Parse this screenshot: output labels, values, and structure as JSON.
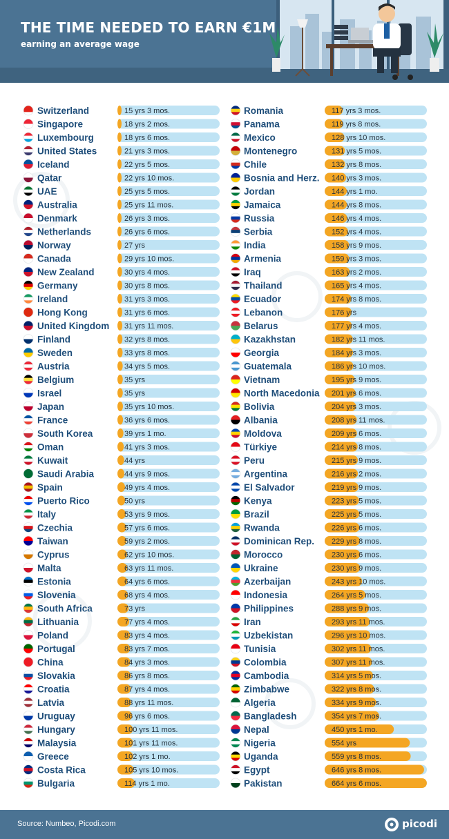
{
  "header": {
    "title": "THE TIME NEEDED TO EARN €1M",
    "subtitle": "earning an average wage"
  },
  "footer": {
    "source": "Source: Numbeo, Picodi.com",
    "logo": "picodi"
  },
  "colors": {
    "header_bg": "#4b7393",
    "country_text": "#1f4e7a",
    "bar_track": "#bfe3f4",
    "bar_fill": "#f4a623",
    "value_text": "#26323c"
  },
  "chart_data": {
    "type": "bar",
    "orientation": "horizontal",
    "title": "THE TIME NEEDED TO EARN €1M",
    "subtitle": "earning an average wage",
    "units": "years",
    "xlim": [
      0,
      665
    ],
    "grid": false,
    "legend": "none",
    "columns": [
      {
        "rows": [
          {
            "country": "Switzerland",
            "flag": "switzerland-flag",
            "label": "15 yrs 3 mos.",
            "years": 15.25
          },
          {
            "country": "Singapore",
            "flag": "singapore-flag",
            "label": "18 yrs 2 mos.",
            "years": 18.17
          },
          {
            "country": "Luxembourg",
            "flag": "luxembourg-flag",
            "label": "18 yrs 6 mos.",
            "years": 18.5
          },
          {
            "country": "United States",
            "flag": "united-states-flag",
            "label": "21 yrs 3 mos.",
            "years": 21.25
          },
          {
            "country": "Iceland",
            "flag": "iceland-flag",
            "label": "22 yrs 5 mos.",
            "years": 22.42
          },
          {
            "country": "Qatar",
            "flag": "qatar-flag",
            "label": "22 yrs 10 mos.",
            "years": 22.83
          },
          {
            "country": "UAE",
            "flag": "uae-flag",
            "label": "25 yrs 5 mos.",
            "years": 25.42
          },
          {
            "country": "Australia",
            "flag": "australia-flag",
            "label": "25 yrs 11 mos.",
            "years": 25.92
          },
          {
            "country": "Denmark",
            "flag": "denmark-flag",
            "label": "26 yrs 3 mos.",
            "years": 26.25
          },
          {
            "country": "Netherlands",
            "flag": "netherlands-flag",
            "label": "26 yrs 6 mos.",
            "years": 26.5
          },
          {
            "country": "Norway",
            "flag": "norway-flag",
            "label": "27 yrs",
            "years": 27
          },
          {
            "country": "Canada",
            "flag": "canada-flag",
            "label": "29 yrs 10 mos.",
            "years": 29.83
          },
          {
            "country": "New Zealand",
            "flag": "new-zealand-flag",
            "label": "30 yrs 4 mos.",
            "years": 30.33
          },
          {
            "country": "Germany",
            "flag": "germany-flag",
            "label": "30 yrs 8 mos.",
            "years": 30.67
          },
          {
            "country": "Ireland",
            "flag": "ireland-flag",
            "label": "31 yrs 3 mos.",
            "years": 31.25
          },
          {
            "country": "Hong Kong",
            "flag": "hong-kong-flag",
            "label": "31 yrs 6 mos.",
            "years": 31.5
          },
          {
            "country": "United Kingdom",
            "flag": "united-kingdom-flag",
            "label": "31 yrs 11 mos.",
            "years": 31.92
          },
          {
            "country": "Finland",
            "flag": "finland-flag",
            "label": "32 yrs 8 mos.",
            "years": 32.67
          },
          {
            "country": "Sweden",
            "flag": "sweden-flag",
            "label": "33 yrs 8 mos.",
            "years": 33.67
          },
          {
            "country": "Austria",
            "flag": "austria-flag",
            "label": "34 yrs 5 mos.",
            "years": 34.42
          },
          {
            "country": "Belgium",
            "flag": "belgium-flag",
            "label": "35 yrs",
            "years": 35
          },
          {
            "country": "Israel",
            "flag": "israel-flag",
            "label": "35 yrs",
            "years": 35
          },
          {
            "country": "Japan",
            "flag": "japan-flag",
            "label": "35 yrs 10 mos.",
            "years": 35.83
          },
          {
            "country": "France",
            "flag": "france-flag",
            "label": "36 yrs 6 mos.",
            "years": 36.5
          },
          {
            "country": "South Korea",
            "flag": "south-korea-flag",
            "label": "39 yrs 1 mo.",
            "years": 39.08
          },
          {
            "country": "Oman",
            "flag": "oman-flag",
            "label": "41 yrs 3 mos.",
            "years": 41.25
          },
          {
            "country": "Kuwait",
            "flag": "kuwait-flag",
            "label": "44 yrs",
            "years": 44
          },
          {
            "country": "Saudi Arabia",
            "flag": "saudi-arabia-flag",
            "label": "44 yrs 9 mos.",
            "years": 44.75
          },
          {
            "country": "Spain",
            "flag": "spain-flag",
            "label": "49 yrs 4 mos.",
            "years": 49.33
          },
          {
            "country": "Puerto Rico",
            "flag": "puerto-rico-flag",
            "label": "50 yrs",
            "years": 50
          },
          {
            "country": "Italy",
            "flag": "italy-flag",
            "label": "53 yrs 9 mos.",
            "years": 53.75
          },
          {
            "country": "Czechia",
            "flag": "czechia-flag",
            "label": "57 yrs 6 mos.",
            "years": 57.5
          },
          {
            "country": "Taiwan",
            "flag": "taiwan-flag",
            "label": "59 yrs 2 mos.",
            "years": 59.17
          },
          {
            "country": "Cyprus",
            "flag": "cyprus-flag",
            "label": "62 yrs 10 mos.",
            "years": 62.83
          },
          {
            "country": "Malta",
            "flag": "malta-flag",
            "label": "63 yrs 11 mos.",
            "years": 63.92
          },
          {
            "country": "Estonia",
            "flag": "estonia-flag",
            "label": "64 yrs 6 mos.",
            "years": 64.5
          },
          {
            "country": "Slovenia",
            "flag": "slovenia-flag",
            "label": "68 yrs 4 mos.",
            "years": 68.33
          },
          {
            "country": "South Africa",
            "flag": "south-africa-flag",
            "label": "73 yrs",
            "years": 73
          },
          {
            "country": "Lithuania",
            "flag": "lithuania-flag",
            "label": "77 yrs 4 mos.",
            "years": 77.33
          },
          {
            "country": "Poland",
            "flag": "poland-flag",
            "label": "83 yrs 4 mos.",
            "years": 83.33
          },
          {
            "country": "Portugal",
            "flag": "portugal-flag",
            "label": "83 yrs 7 mos.",
            "years": 83.58
          },
          {
            "country": "China",
            "flag": "china-flag",
            "label": "84 yrs 3 mos.",
            "years": 84.25
          },
          {
            "country": "Slovakia",
            "flag": "slovakia-flag",
            "label": "86 yrs 8 mos.",
            "years": 86.67
          },
          {
            "country": "Croatia",
            "flag": "croatia-flag",
            "label": "87 yrs 4 mos.",
            "years": 87.33
          },
          {
            "country": "Latvia",
            "flag": "latvia-flag",
            "label": "88 yrs 11 mos.",
            "years": 88.92
          },
          {
            "country": "Uruguay",
            "flag": "uruguay-flag",
            "label": "96 yrs 6 mos.",
            "years": 96.5
          },
          {
            "country": "Hungary",
            "flag": "hungary-flag",
            "label": "100 yrs 11 mos.",
            "years": 100.92
          },
          {
            "country": "Malaysia",
            "flag": "malaysia-flag",
            "label": "101 yrs 11 mos.",
            "years": 101.92
          },
          {
            "country": "Greece",
            "flag": "greece-flag",
            "label": "102 yrs 1 mo.",
            "years": 102.08
          },
          {
            "country": "Costa Rica",
            "flag": "costa-rica-flag",
            "label": "105 yrs 10 mos.",
            "years": 105.83
          },
          {
            "country": "Bulgaria",
            "flag": "bulgaria-flag",
            "label": "114 yrs 1 mo.",
            "years": 114.08
          }
        ]
      },
      {
        "rows": [
          {
            "country": "Romania",
            "flag": "romania-flag",
            "label": "117 yrs 3 mos.",
            "years": 117.25
          },
          {
            "country": "Panama",
            "flag": "panama-flag",
            "label": "119 yrs 8 mos.",
            "years": 119.67
          },
          {
            "country": "Mexico",
            "flag": "mexico-flag",
            "label": "128 yrs 10 mos.",
            "years": 128.83
          },
          {
            "country": "Montenegro",
            "flag": "montenegro-flag",
            "label": "131 yrs 5 mos.",
            "years": 131.42
          },
          {
            "country": "Chile",
            "flag": "chile-flag",
            "label": "132 yrs 8 mos.",
            "years": 132.67
          },
          {
            "country": "Bosnia and Herz.",
            "flag": "bosnia-flag",
            "label": "140 yrs 3 mos.",
            "years": 140.25
          },
          {
            "country": "Jordan",
            "flag": "jordan-flag",
            "label": "144 yrs 1 mo.",
            "years": 144.08
          },
          {
            "country": "Jamaica",
            "flag": "jamaica-flag",
            "label": "144 yrs 8 mos.",
            "years": 144.67
          },
          {
            "country": "Russia",
            "flag": "russia-flag",
            "label": "146 yrs 4 mos.",
            "years": 146.33
          },
          {
            "country": "Serbia",
            "flag": "serbia-flag",
            "label": "152 yrs 4 mos.",
            "years": 152.33
          },
          {
            "country": "India",
            "flag": "india-flag",
            "label": "158 yrs 9 mos.",
            "years": 158.75
          },
          {
            "country": "Armenia",
            "flag": "armenia-flag",
            "label": "159 yrs 3 mos.",
            "years": 159.25
          },
          {
            "country": "Iraq",
            "flag": "iraq-flag",
            "label": "163 yrs 2 mos.",
            "years": 163.17
          },
          {
            "country": "Thailand",
            "flag": "thailand-flag",
            "label": "165 yrs 4 mos.",
            "years": 165.33
          },
          {
            "country": "Ecuador",
            "flag": "ecuador-flag",
            "label": "174 yrs 8 mos.",
            "years": 174.67
          },
          {
            "country": "Lebanon",
            "flag": "lebanon-flag",
            "label": "176 yrs",
            "years": 176
          },
          {
            "country": "Belarus",
            "flag": "belarus-flag",
            "label": "177 yrs 4 mos.",
            "years": 177.33
          },
          {
            "country": "Kazakhstan",
            "flag": "kazakhstan-flag",
            "label": "182 yrs 11 mos.",
            "years": 182.92
          },
          {
            "country": "Georgia",
            "flag": "georgia-flag",
            "label": "184 yrs 3 mos.",
            "years": 184.25
          },
          {
            "country": "Guatemala",
            "flag": "guatemala-flag",
            "label": "186 yrs 10 mos.",
            "years": 186.83
          },
          {
            "country": "Vietnam",
            "flag": "vietnam-flag",
            "label": "195 yrs 9 mos.",
            "years": 195.75
          },
          {
            "country": "North Macedonia",
            "flag": "north-macedonia-flag",
            "label": "201 yrs 6 mos.",
            "years": 201.5
          },
          {
            "country": "Bolivia",
            "flag": "bolivia-flag",
            "label": "204 yrs 3 mos.",
            "years": 204.25
          },
          {
            "country": "Albania",
            "flag": "albania-flag",
            "label": "208 yrs 11 mos.",
            "years": 208.92
          },
          {
            "country": "Moldova",
            "flag": "moldova-flag",
            "label": "209 yrs 6 mos.",
            "years": 209.5
          },
          {
            "country": "Türkiye",
            "flag": "turkiye-flag",
            "label": "214 yrs 8 mos.",
            "years": 214.67
          },
          {
            "country": "Peru",
            "flag": "peru-flag",
            "label": "215 yrs 9 mos.",
            "years": 215.75
          },
          {
            "country": "Argentina",
            "flag": "argentina-flag",
            "label": "216 yrs 2 mos.",
            "years": 216.17
          },
          {
            "country": "El Salvador",
            "flag": "el-salvador-flag",
            "label": "219 yrs 9 mos.",
            "years": 219.75
          },
          {
            "country": "Kenya",
            "flag": "kenya-flag",
            "label": "223 yrs 5 mos.",
            "years": 223.42
          },
          {
            "country": "Brazil",
            "flag": "brazil-flag",
            "label": "225 yrs 5 mos.",
            "years": 225.42
          },
          {
            "country": "Rwanda",
            "flag": "rwanda-flag",
            "label": "226 yrs 6 mos.",
            "years": 226.5
          },
          {
            "country": "Dominican Rep.",
            "flag": "dominican-republic-flag",
            "label": "229 yrs 8 mos.",
            "years": 229.67
          },
          {
            "country": "Morocco",
            "flag": "morocco-flag",
            "label": "230 yrs 6 mos.",
            "years": 230.5
          },
          {
            "country": "Ukraine",
            "flag": "ukraine-flag",
            "label": "230 yrs 9 mos.",
            "years": 230.75
          },
          {
            "country": "Azerbaijan",
            "flag": "azerbaijan-flag",
            "label": "243 yrs 10 mos.",
            "years": 243.83
          },
          {
            "country": "Indonesia",
            "flag": "indonesia-flag",
            "label": "264 yrs 5 mos.",
            "years": 264.42
          },
          {
            "country": "Philippines",
            "flag": "philippines-flag",
            "label": "288 yrs 9 mos.",
            "years": 288.75
          },
          {
            "country": "Iran",
            "flag": "iran-flag",
            "label": "293 yrs 11 mos.",
            "years": 293.92
          },
          {
            "country": "Uzbekistan",
            "flag": "uzbekistan-flag",
            "label": "296 yrs 10 mos.",
            "years": 296.83
          },
          {
            "country": "Tunisia",
            "flag": "tunisia-flag",
            "label": "302 yrs 11 mos.",
            "years": 302.92
          },
          {
            "country": "Colombia",
            "flag": "colombia-flag",
            "label": "307 yrs 11 mos.",
            "years": 307.92
          },
          {
            "country": "Cambodia",
            "flag": "cambodia-flag",
            "label": "314 yrs 5 mos.",
            "years": 314.42
          },
          {
            "country": "Zimbabwe",
            "flag": "zimbabwe-flag",
            "label": "322 yrs 8 mos.",
            "years": 322.67
          },
          {
            "country": "Algeria",
            "flag": "algeria-flag",
            "label": "334 yrs 9 mos.",
            "years": 334.75
          },
          {
            "country": "Bangladesh",
            "flag": "bangladesh-flag",
            "label": "354 yrs 7 mos.",
            "years": 354.58
          },
          {
            "country": "Nepal",
            "flag": "nepal-flag",
            "label": "450 yrs 1 mo.",
            "years": 450.08
          },
          {
            "country": "Nigeria",
            "flag": "nigeria-flag",
            "label": "554 yrs",
            "years": 554
          },
          {
            "country": "Uganda",
            "flag": "uganda-flag",
            "label": "559 yrs 8 mos.",
            "years": 559.67
          },
          {
            "country": "Egypt",
            "flag": "egypt-flag",
            "label": "646 yrs 8 mos.",
            "years": 646.67
          },
          {
            "country": "Pakistan",
            "flag": "pakistan-flag",
            "label": "664 yrs 6 mos.",
            "years": 664.5
          }
        ]
      }
    ]
  }
}
